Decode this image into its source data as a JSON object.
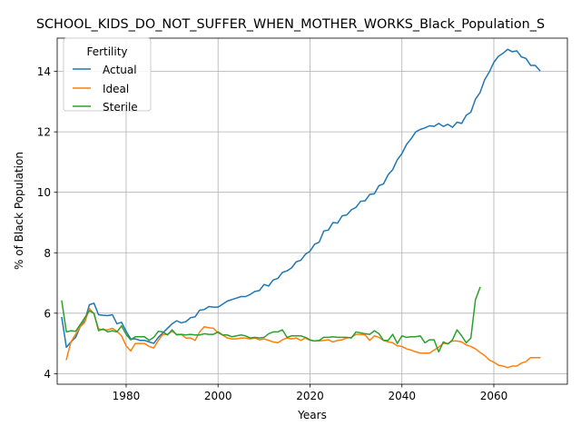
{
  "chart_data": {
    "type": "line",
    "title": "SCHOOL_KIDS_DO_NOT_SUFFER_WHEN_MOTHER_WORKS_Black_Population_S",
    "xlabel": "Years",
    "ylabel": "% of Black Population",
    "xlim": [
      1965,
      2076
    ],
    "ylim": [
      3.65,
      15.1
    ],
    "xticks": [
      1980,
      2000,
      2020,
      2040,
      2060
    ],
    "yticks": [
      4,
      6,
      8,
      10,
      12,
      14
    ],
    "grid": true,
    "legend": {
      "title": "Fertility",
      "position": "top-left"
    },
    "series": [
      {
        "name": "Actual",
        "color": "#1f77b4",
        "x": [
          1966,
          1967,
          1968,
          1969,
          1970,
          1971,
          1972,
          1973,
          1974,
          1975,
          1976,
          1977,
          1978,
          1979,
          1980,
          1981,
          1982,
          1983,
          1984,
          1985,
          1986,
          1987,
          1988,
          1989,
          1990,
          1991,
          1992,
          1993,
          1994,
          1995,
          1996,
          1997,
          1998,
          1999,
          2000,
          2001,
          2002,
          2003,
          2004,
          2005,
          2006,
          2007,
          2008,
          2009,
          2010,
          2011,
          2012,
          2013,
          2014,
          2015,
          2016,
          2017,
          2018,
          2019,
          2020,
          2021,
          2022,
          2023,
          2024,
          2025,
          2026,
          2027,
          2028,
          2029,
          2030,
          2031,
          2032,
          2033,
          2034,
          2035,
          2036,
          2037,
          2038,
          2039,
          2040,
          2041,
          2042,
          2043,
          2044,
          2045,
          2046,
          2047,
          2048,
          2049,
          2050,
          2051,
          2052,
          2053,
          2054,
          2055,
          2056,
          2057,
          2058,
          2059,
          2060,
          2061,
          2062,
          2063,
          2064,
          2065,
          2066,
          2067,
          2068,
          2069,
          2070
        ],
        "values": [
          5.85,
          4.87,
          5.05,
          5.2,
          5.55,
          5.75,
          6.28,
          6.33,
          5.95,
          5.93,
          5.92,
          5.95,
          5.65,
          5.7,
          5.4,
          5.15,
          5.15,
          5.1,
          5.1,
          5.05,
          5.0,
          5.2,
          5.35,
          5.5,
          5.65,
          5.75,
          5.68,
          5.72,
          5.85,
          5.88,
          6.1,
          6.12,
          6.22,
          6.2,
          6.2,
          6.3,
          6.4,
          6.45,
          6.5,
          6.55,
          6.55,
          6.62,
          6.72,
          6.75,
          6.95,
          6.9,
          7.1,
          7.15,
          7.35,
          7.4,
          7.5,
          7.7,
          7.75,
          7.95,
          8.05,
          8.28,
          8.35,
          8.72,
          8.75,
          9.0,
          8.98,
          9.22,
          9.25,
          9.42,
          9.5,
          9.7,
          9.72,
          9.93,
          9.95,
          10.22,
          10.28,
          10.58,
          10.75,
          11.08,
          11.28,
          11.58,
          11.77,
          12.0,
          12.08,
          12.13,
          12.2,
          12.18,
          12.28,
          12.18,
          12.25,
          12.15,
          12.32,
          12.28,
          12.55,
          12.65,
          13.08,
          13.3,
          13.72,
          13.98,
          14.3,
          14.5,
          14.6,
          14.73,
          14.65,
          14.68,
          14.48,
          14.43,
          14.2,
          14.2,
          14.03
        ]
      },
      {
        "name": "Ideal",
        "color": "#ff7f0e",
        "x": [
          1967,
          1968,
          1969,
          1970,
          1971,
          1972,
          1973,
          1974,
          1975,
          1976,
          1977,
          1978,
          1979,
          1980,
          1981,
          1982,
          1983,
          1984,
          1985,
          1986,
          1987,
          1988,
          1989,
          1990,
          1991,
          1992,
          1993,
          1994,
          1995,
          1996,
          1997,
          1998,
          1999,
          2000,
          2001,
          2002,
          2003,
          2004,
          2005,
          2006,
          2007,
          2008,
          2009,
          2010,
          2011,
          2012,
          2013,
          2014,
          2015,
          2016,
          2017,
          2018,
          2019,
          2020,
          2021,
          2022,
          2023,
          2024,
          2025,
          2026,
          2027,
          2028,
          2029,
          2030,
          2031,
          2032,
          2033,
          2034,
          2035,
          2036,
          2037,
          2038,
          2039,
          2040,
          2041,
          2042,
          2043,
          2044,
          2045,
          2046,
          2047,
          2048,
          2049,
          2050,
          2051,
          2052,
          2053,
          2054,
          2055,
          2056,
          2057,
          2058,
          2059,
          2060,
          2061,
          2062,
          2063,
          2064,
          2065,
          2066,
          2067,
          2068,
          2069,
          2070
        ],
        "values": [
          4.47,
          5.05,
          5.3,
          5.55,
          5.7,
          6.15,
          5.98,
          5.48,
          5.45,
          5.45,
          5.5,
          5.4,
          5.25,
          4.92,
          4.75,
          5.0,
          5.0,
          5.0,
          4.9,
          4.85,
          5.1,
          5.3,
          5.3,
          5.4,
          5.3,
          5.3,
          5.18,
          5.18,
          5.1,
          5.38,
          5.55,
          5.52,
          5.5,
          5.35,
          5.28,
          5.18,
          5.15,
          5.15,
          5.18,
          5.18,
          5.15,
          5.18,
          5.12,
          5.15,
          5.1,
          5.05,
          5.02,
          5.12,
          5.18,
          5.15,
          5.18,
          5.1,
          5.18,
          5.1,
          5.08,
          5.08,
          5.1,
          5.12,
          5.05,
          5.1,
          5.12,
          5.18,
          5.2,
          5.3,
          5.3,
          5.28,
          5.1,
          5.25,
          5.2,
          5.1,
          5.05,
          5.02,
          4.92,
          4.9,
          4.82,
          4.78,
          4.72,
          4.68,
          4.68,
          4.68,
          4.78,
          4.88,
          5.0,
          5.0,
          5.08,
          5.08,
          5.05,
          4.95,
          4.9,
          4.82,
          4.7,
          4.6,
          4.45,
          4.38,
          4.28,
          4.25,
          4.2,
          4.25,
          4.25,
          4.35,
          4.4,
          4.53,
          4.53,
          4.53
        ]
      },
      {
        "name": "Sterile",
        "color": "#2ca02c",
        "x": [
          1966,
          1967,
          1968,
          1969,
          1970,
          1971,
          1972,
          1973,
          1974,
          1975,
          1976,
          1977,
          1978,
          1979,
          1980,
          1981,
          1982,
          1983,
          1984,
          1985,
          1986,
          1987,
          1988,
          1989,
          1990,
          1991,
          1992,
          1993,
          1994,
          1995,
          1996,
          1997,
          1998,
          1999,
          2000,
          2001,
          2002,
          2003,
          2004,
          2005,
          2006,
          2007,
          2008,
          2009,
          2010,
          2011,
          2012,
          2013,
          2014,
          2015,
          2016,
          2017,
          2018,
          2019,
          2020,
          2021,
          2022,
          2023,
          2024,
          2025,
          2026,
          2027,
          2028,
          2029,
          2030,
          2031,
          2032,
          2033,
          2034,
          2035,
          2036,
          2037,
          2038,
          2039,
          2040,
          2041,
          2042,
          2043,
          2044,
          2045,
          2046,
          2047,
          2048,
          2049,
          2050,
          2051,
          2052,
          2053,
          2054,
          2055,
          2056,
          2057
        ],
        "values": [
          6.4,
          5.38,
          5.42,
          5.4,
          5.62,
          5.85,
          6.08,
          6.0,
          5.42,
          5.48,
          5.38,
          5.42,
          5.38,
          5.58,
          5.3,
          5.12,
          5.22,
          5.22,
          5.22,
          5.1,
          5.2,
          5.4,
          5.38,
          5.28,
          5.45,
          5.28,
          5.3,
          5.28,
          5.3,
          5.28,
          5.28,
          5.32,
          5.3,
          5.3,
          5.38,
          5.28,
          5.28,
          5.22,
          5.25,
          5.28,
          5.25,
          5.18,
          5.2,
          5.18,
          5.2,
          5.32,
          5.38,
          5.38,
          5.45,
          5.2,
          5.25,
          5.25,
          5.25,
          5.2,
          5.12,
          5.08,
          5.1,
          5.2,
          5.2,
          5.22,
          5.2,
          5.2,
          5.2,
          5.18,
          5.38,
          5.35,
          5.32,
          5.3,
          5.42,
          5.32,
          5.1,
          5.1,
          5.3,
          5.0,
          5.25,
          5.2,
          5.22,
          5.22,
          5.25,
          5.02,
          5.12,
          5.12,
          4.72,
          5.05,
          4.98,
          5.12,
          5.45,
          5.25,
          5.02,
          5.18,
          6.45,
          6.85
        ]
      }
    ]
  }
}
